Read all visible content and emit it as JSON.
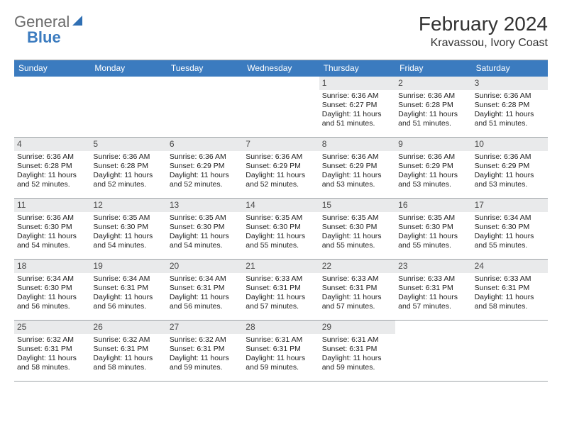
{
  "logo": {
    "part1": "General",
    "part2": "Blue"
  },
  "title": "February 2024",
  "location": "Kravassou, Ivory Coast",
  "styling": {
    "headerBg": "#3b7bbf",
    "headerText": "#ffffff",
    "dayNumBg": "#e9eaeb",
    "borderColor": "#9fa4a8",
    "bodyText": "#222222",
    "calendarCols": 7,
    "cellFontSize": 10.5,
    "headerFontSize": 12
  },
  "weekdays": [
    "Sunday",
    "Monday",
    "Tuesday",
    "Wednesday",
    "Thursday",
    "Friday",
    "Saturday"
  ],
  "startOffset": 4,
  "days": [
    {
      "n": 1,
      "sr": "6:36 AM",
      "ss": "6:27 PM",
      "dl": "11 hours and 51 minutes."
    },
    {
      "n": 2,
      "sr": "6:36 AM",
      "ss": "6:28 PM",
      "dl": "11 hours and 51 minutes."
    },
    {
      "n": 3,
      "sr": "6:36 AM",
      "ss": "6:28 PM",
      "dl": "11 hours and 51 minutes."
    },
    {
      "n": 4,
      "sr": "6:36 AM",
      "ss": "6:28 PM",
      "dl": "11 hours and 52 minutes."
    },
    {
      "n": 5,
      "sr": "6:36 AM",
      "ss": "6:28 PM",
      "dl": "11 hours and 52 minutes."
    },
    {
      "n": 6,
      "sr": "6:36 AM",
      "ss": "6:29 PM",
      "dl": "11 hours and 52 minutes."
    },
    {
      "n": 7,
      "sr": "6:36 AM",
      "ss": "6:29 PM",
      "dl": "11 hours and 52 minutes."
    },
    {
      "n": 8,
      "sr": "6:36 AM",
      "ss": "6:29 PM",
      "dl": "11 hours and 53 minutes."
    },
    {
      "n": 9,
      "sr": "6:36 AM",
      "ss": "6:29 PM",
      "dl": "11 hours and 53 minutes."
    },
    {
      "n": 10,
      "sr": "6:36 AM",
      "ss": "6:29 PM",
      "dl": "11 hours and 53 minutes."
    },
    {
      "n": 11,
      "sr": "6:36 AM",
      "ss": "6:30 PM",
      "dl": "11 hours and 54 minutes."
    },
    {
      "n": 12,
      "sr": "6:35 AM",
      "ss": "6:30 PM",
      "dl": "11 hours and 54 minutes."
    },
    {
      "n": 13,
      "sr": "6:35 AM",
      "ss": "6:30 PM",
      "dl": "11 hours and 54 minutes."
    },
    {
      "n": 14,
      "sr": "6:35 AM",
      "ss": "6:30 PM",
      "dl": "11 hours and 55 minutes."
    },
    {
      "n": 15,
      "sr": "6:35 AM",
      "ss": "6:30 PM",
      "dl": "11 hours and 55 minutes."
    },
    {
      "n": 16,
      "sr": "6:35 AM",
      "ss": "6:30 PM",
      "dl": "11 hours and 55 minutes."
    },
    {
      "n": 17,
      "sr": "6:34 AM",
      "ss": "6:30 PM",
      "dl": "11 hours and 55 minutes."
    },
    {
      "n": 18,
      "sr": "6:34 AM",
      "ss": "6:30 PM",
      "dl": "11 hours and 56 minutes."
    },
    {
      "n": 19,
      "sr": "6:34 AM",
      "ss": "6:31 PM",
      "dl": "11 hours and 56 minutes."
    },
    {
      "n": 20,
      "sr": "6:34 AM",
      "ss": "6:31 PM",
      "dl": "11 hours and 56 minutes."
    },
    {
      "n": 21,
      "sr": "6:33 AM",
      "ss": "6:31 PM",
      "dl": "11 hours and 57 minutes."
    },
    {
      "n": 22,
      "sr": "6:33 AM",
      "ss": "6:31 PM",
      "dl": "11 hours and 57 minutes."
    },
    {
      "n": 23,
      "sr": "6:33 AM",
      "ss": "6:31 PM",
      "dl": "11 hours and 57 minutes."
    },
    {
      "n": 24,
      "sr": "6:33 AM",
      "ss": "6:31 PM",
      "dl": "11 hours and 58 minutes."
    },
    {
      "n": 25,
      "sr": "6:32 AM",
      "ss": "6:31 PM",
      "dl": "11 hours and 58 minutes."
    },
    {
      "n": 26,
      "sr": "6:32 AM",
      "ss": "6:31 PM",
      "dl": "11 hours and 58 minutes."
    },
    {
      "n": 27,
      "sr": "6:32 AM",
      "ss": "6:31 PM",
      "dl": "11 hours and 59 minutes."
    },
    {
      "n": 28,
      "sr": "6:31 AM",
      "ss": "6:31 PM",
      "dl": "11 hours and 59 minutes."
    },
    {
      "n": 29,
      "sr": "6:31 AM",
      "ss": "6:31 PM",
      "dl": "11 hours and 59 minutes."
    }
  ],
  "labels": {
    "sunrise": "Sunrise: ",
    "sunset": "Sunset: ",
    "daylight": "Daylight: "
  }
}
